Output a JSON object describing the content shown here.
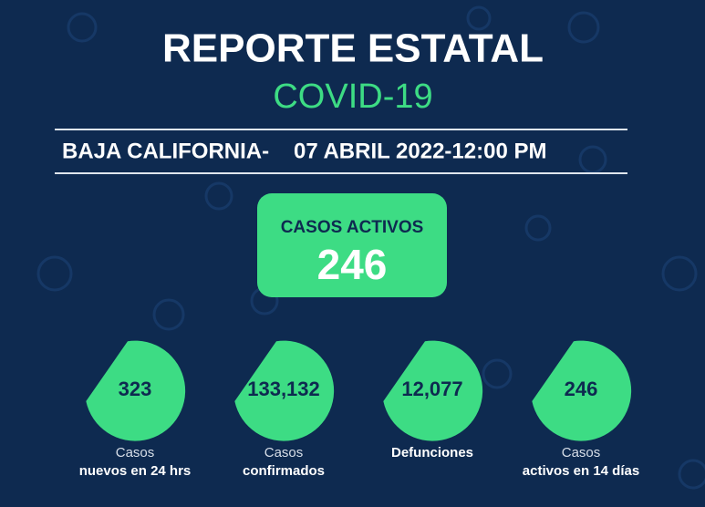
{
  "header": {
    "title": "REPORTE ESTATAL",
    "subtitle": "COVID-19"
  },
  "report_line": {
    "location": "BAJA CALIFORNIA-",
    "date": "07 ABRIL 2022-12:00 PM"
  },
  "active_cases": {
    "label": "CASOS ACTIVOS",
    "value": "246"
  },
  "stats": [
    {
      "value": "323",
      "label": [
        "Casos",
        "nuevos en 24 hrs"
      ]
    },
    {
      "value": "133,132",
      "label": [
        "Casos",
        "confirmados"
      ]
    },
    {
      "value": "12,077",
      "label": [
        "Defunciones"
      ]
    },
    {
      "value": "246",
      "label": [
        "Casos",
        "activos en 14 días"
      ]
    }
  ]
}
